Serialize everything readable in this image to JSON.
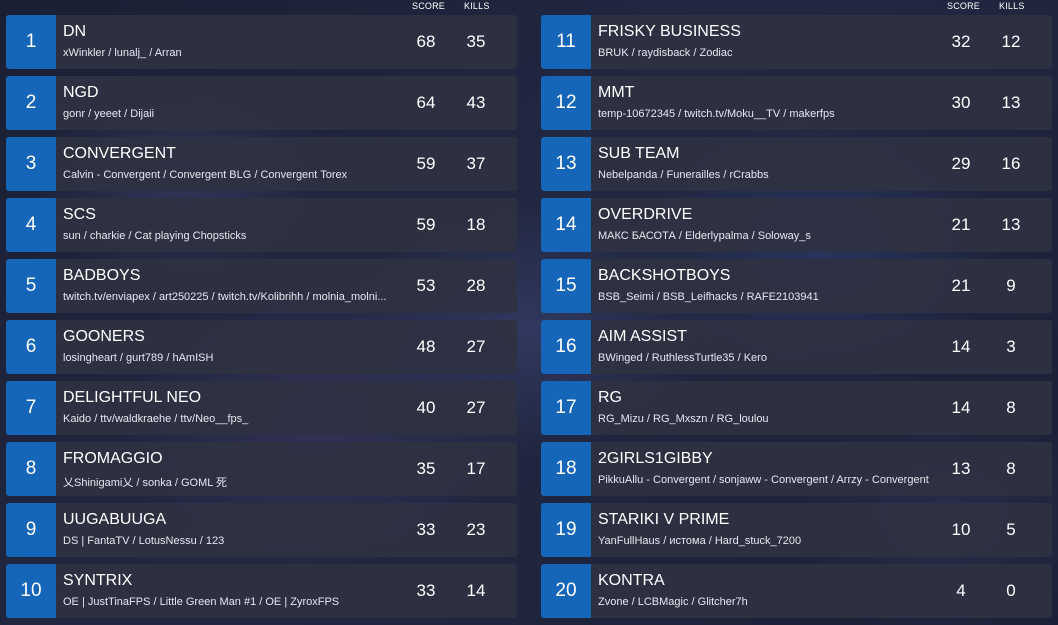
{
  "headers": {
    "score": "SCORE",
    "kills": "KILLS"
  },
  "colors": {
    "rank_bg": "#1565b8",
    "row_bg": "#2e3242",
    "text": "#ffffff"
  },
  "left_column": [
    {
      "rank": "1",
      "team": "DN",
      "players": "xWinkler / lunalj_ / Arran",
      "score": "68",
      "kills": "35"
    },
    {
      "rank": "2",
      "team": "NGD",
      "players": "gonr / yeeet / Dijaii",
      "score": "64",
      "kills": "43"
    },
    {
      "rank": "3",
      "team": "CONVERGENT",
      "players": "Calvin - Convergent / Convergent BLG / Convergent Torex",
      "score": "59",
      "kills": "37"
    },
    {
      "rank": "4",
      "team": "SCS",
      "players": "sun / charkie / Cat playing Chopsticks",
      "score": "59",
      "kills": "18"
    },
    {
      "rank": "5",
      "team": "BADBOYS",
      "players": "twitch.tv/enviapex / art250225 / twitch.tv/Kolibrihh / molnia_molni...",
      "score": "53",
      "kills": "28"
    },
    {
      "rank": "6",
      "team": "GOONERS",
      "players": "losingheart / gurt789 / hAmISH",
      "score": "48",
      "kills": "27"
    },
    {
      "rank": "7",
      "team": "DELIGHTFUL NEO",
      "players": "Kaido / ttv/waldkraehe / ttv/Neo__fps_",
      "score": "40",
      "kills": "27"
    },
    {
      "rank": "8",
      "team": "FROMAGGIO",
      "players": "乂Shinigami乂 / sonka / GOML 死",
      "score": "35",
      "kills": "17"
    },
    {
      "rank": "9",
      "team": "UUGABUUGA",
      "players": "DS | FantaTV / LotusNessu / 123",
      "score": "33",
      "kills": "23"
    },
    {
      "rank": "10",
      "team": "SYNTRIX",
      "players": "OE | JustTinaFPS / Little Green Man #1 / OE | ZyroxFPS",
      "score": "33",
      "kills": "14"
    }
  ],
  "right_column": [
    {
      "rank": "11",
      "team": "FRISKY BUSINESS",
      "players": "BRUK / raydisback / Zodiac",
      "score": "32",
      "kills": "12"
    },
    {
      "rank": "12",
      "team": "MMT",
      "players": "temp-10672345 / twitch.tv/Moku__TV / makerfps",
      "score": "30",
      "kills": "13"
    },
    {
      "rank": "13",
      "team": "SUB TEAM",
      "players": "Nebelpanda / Funerailles / rCrabbs",
      "score": "29",
      "kills": "16"
    },
    {
      "rank": "14",
      "team": "OVERDRIVE",
      "players": "МАКС БАСОТА / Elderlypalma / Soloway_s",
      "score": "21",
      "kills": "13"
    },
    {
      "rank": "15",
      "team": "BACKSHOTBOYS",
      "players": "BSB_Seimi / BSB_Leifhacks / RAFE2103941",
      "score": "21",
      "kills": "9"
    },
    {
      "rank": "16",
      "team": "AIM ASSIST",
      "players": "BWinged / RuthlessTurtle35 / Kero",
      "score": "14",
      "kills": "3"
    },
    {
      "rank": "17",
      "team": "RG",
      "players": "RG_Mizu / RG_Mxszn / RG_loulou",
      "score": "14",
      "kills": "8"
    },
    {
      "rank": "18",
      "team": "2GIRLS1GIBBY",
      "players": "PikkuAllu - Convergent / sonjaww - Convergent / Arrzy - Convergent",
      "score": "13",
      "kills": "8"
    },
    {
      "rank": "19",
      "team": "STARIKI V PRIME",
      "players": "YanFullHaus / истома / Hard_stuck_7200",
      "score": "10",
      "kills": "5"
    },
    {
      "rank": "20",
      "team": "KONTRA",
      "players": "Zvone / LCBMagic / Glitcher7h",
      "score": "4",
      "kills": "0"
    }
  ]
}
